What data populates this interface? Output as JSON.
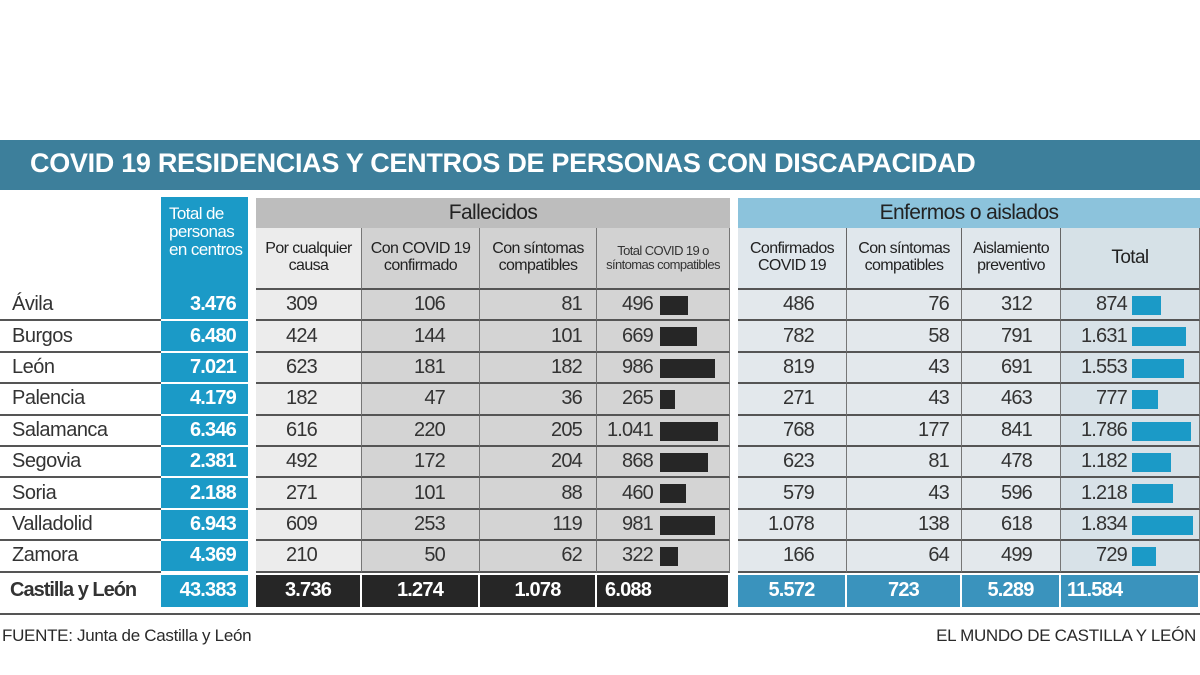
{
  "title": "COVID 19 RESIDENCIAS Y CENTROS DE PERSONAS CON DISCAPACIDAD",
  "colors": {
    "title_bg": "#3d7f9b",
    "blue": "#1b9ac7",
    "bar_dark": "#262626",
    "enfermos_header": "#8cc3dc"
  },
  "chart_data": {
    "type": "table",
    "title": "COVID 19 RESIDENCIAS Y CENTROS DE PERSONAS CON DISCAPACIDAD",
    "total_header": "Total de personas en centros",
    "groups": [
      {
        "label": "Fallecidos",
        "columns": [
          "Por cualquier causa",
          "Con COVID 19 confirmado",
          "Con síntomas compatibles",
          "Total COVID 19 o síntomas compatibles"
        ]
      },
      {
        "label": "Enfermos o aislados",
        "columns": [
          "Confirmados COVID 19",
          "Con síntomas compatibles",
          "Aislamiento preventivo",
          "Total"
        ]
      }
    ],
    "rows": [
      {
        "name": "Ávila",
        "total": "3.476",
        "fallecidos": [
          "309",
          "106",
          "81",
          "496"
        ],
        "enfermos": [
          "486",
          "76",
          "312",
          "874"
        ],
        "bar_f": 496,
        "bar_e": 874
      },
      {
        "name": "Burgos",
        "total": "6.480",
        "fallecidos": [
          "424",
          "144",
          "101",
          "669"
        ],
        "enfermos": [
          "782",
          "58",
          "791",
          "1.631"
        ],
        "bar_f": 669,
        "bar_e": 1631
      },
      {
        "name": "León",
        "total": "7.021",
        "fallecidos": [
          "623",
          "181",
          "182",
          "986"
        ],
        "enfermos": [
          "819",
          "43",
          "691",
          "1.553"
        ],
        "bar_f": 986,
        "bar_e": 1553
      },
      {
        "name": "Palencia",
        "total": "4.179",
        "fallecidos": [
          "182",
          "47",
          "36",
          "265"
        ],
        "enfermos": [
          "271",
          "43",
          "463",
          "777"
        ],
        "bar_f": 265,
        "bar_e": 777
      },
      {
        "name": "Salamanca",
        "total": "6.346",
        "fallecidos": [
          "616",
          "220",
          "205",
          "1.041"
        ],
        "enfermos": [
          "768",
          "177",
          "841",
          "1.786"
        ],
        "bar_f": 1041,
        "bar_e": 1786
      },
      {
        "name": "Segovia",
        "total": "2.381",
        "fallecidos": [
          "492",
          "172",
          "204",
          "868"
        ],
        "enfermos": [
          "623",
          "81",
          "478",
          "1.182"
        ],
        "bar_f": 868,
        "bar_e": 1182
      },
      {
        "name": "Soria",
        "total": "2.188",
        "fallecidos": [
          "271",
          "101",
          "88",
          "460"
        ],
        "enfermos": [
          "579",
          "43",
          "596",
          "1.218"
        ],
        "bar_f": 460,
        "bar_e": 1218
      },
      {
        "name": "Valladolid",
        "total": "6.943",
        "fallecidos": [
          "609",
          "253",
          "119",
          "981"
        ],
        "enfermos": [
          "1.078",
          "138",
          "618",
          "1.834"
        ],
        "bar_f": 981,
        "bar_e": 1834
      },
      {
        "name": "Zamora",
        "total": "4.369",
        "fallecidos": [
          "210",
          "50",
          "62",
          "322"
        ],
        "enfermos": [
          "166",
          "64",
          "499",
          "729"
        ],
        "bar_f": 322,
        "bar_e": 729
      }
    ],
    "total_row": {
      "name": "Castilla y León",
      "total": "43.383",
      "fallecidos": [
        "3.736",
        "1.274",
        "1.078",
        "6.088"
      ],
      "enfermos": [
        "5.572",
        "723",
        "5.289",
        "11.584"
      ]
    }
  },
  "footer": {
    "source": "FUENTE:  Junta de Castilla y León",
    "credit": "EL MUNDO DE CASTILLA Y LEÓN"
  }
}
